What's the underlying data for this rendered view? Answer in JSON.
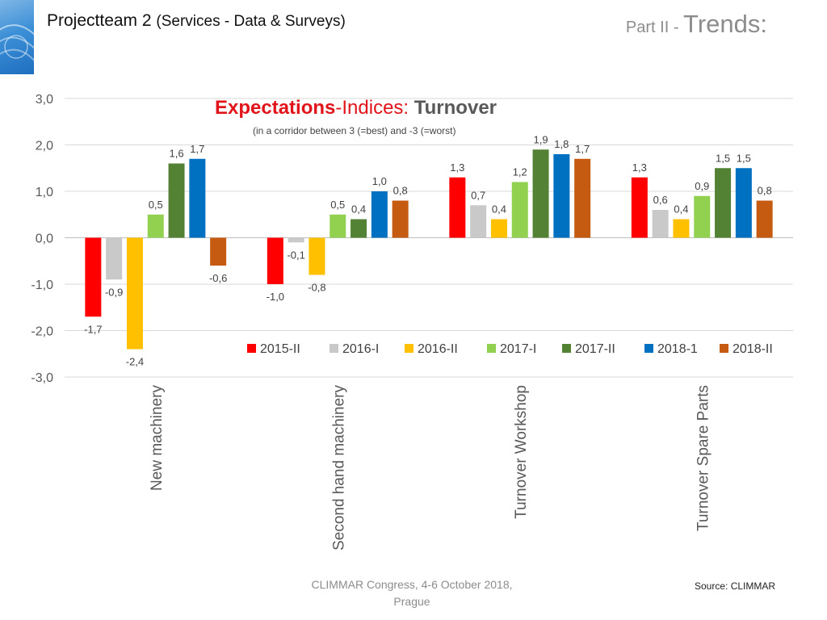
{
  "header": {
    "title": "Projectteam 2",
    "title_sub": "(Services - Data & Surveys)",
    "part_prefix": "Part II - ",
    "part_main": "Trends:"
  },
  "footer": {
    "line1": "CLIMMAR Congress, 4-6 October 2018,",
    "line2": "Prague",
    "source": "Source: CLIMMAR"
  },
  "colors": {
    "2015-II": "#ff0000",
    "2016-I": "#c9c9c9",
    "2016-II": "#ffc000",
    "2017-I": "#92d050",
    "2017-II": "#548235",
    "2018-1": "#0070c0",
    "2018-II": "#c55a11"
  },
  "chart_data": {
    "type": "bar",
    "title_part1": "Expectations",
    "title_part2": "-Indices: ",
    "title_part3": "Turnover",
    "subtitle": "(in a corridor between 3 (=best) and -3 (=worst)",
    "categories": [
      "New machinery",
      "Second hand machinery",
      "Turnover Workshop",
      "Turnover Spare Parts"
    ],
    "series": [
      {
        "name": "2015-II",
        "values": [
          -1.7,
          -1.0,
          1.3,
          1.3
        ]
      },
      {
        "name": "2016-I",
        "values": [
          -0.9,
          -0.1,
          0.7,
          0.6
        ]
      },
      {
        "name": "2016-II",
        "values": [
          -2.4,
          -0.8,
          0.4,
          0.4
        ]
      },
      {
        "name": "2017-I",
        "values": [
          0.5,
          0.5,
          1.2,
          0.9
        ]
      },
      {
        "name": "2017-II",
        "values": [
          1.6,
          0.4,
          1.9,
          1.5
        ]
      },
      {
        "name": "2018-1",
        "values": [
          1.7,
          1.0,
          1.8,
          1.5
        ]
      },
      {
        "name": "2018-II",
        "values": [
          -0.6,
          0.8,
          1.7,
          0.8
        ]
      }
    ],
    "ylim": [
      -3,
      3
    ],
    "yticks": [
      3,
      2,
      1,
      0,
      -1,
      -2,
      -3
    ],
    "ytick_labels": [
      "3,0",
      "2,0",
      "1,0",
      "0,0",
      "-1,0",
      "-2,0",
      "-3,0"
    ],
    "grid": true,
    "legend_position": "bottom-right inside plot"
  }
}
